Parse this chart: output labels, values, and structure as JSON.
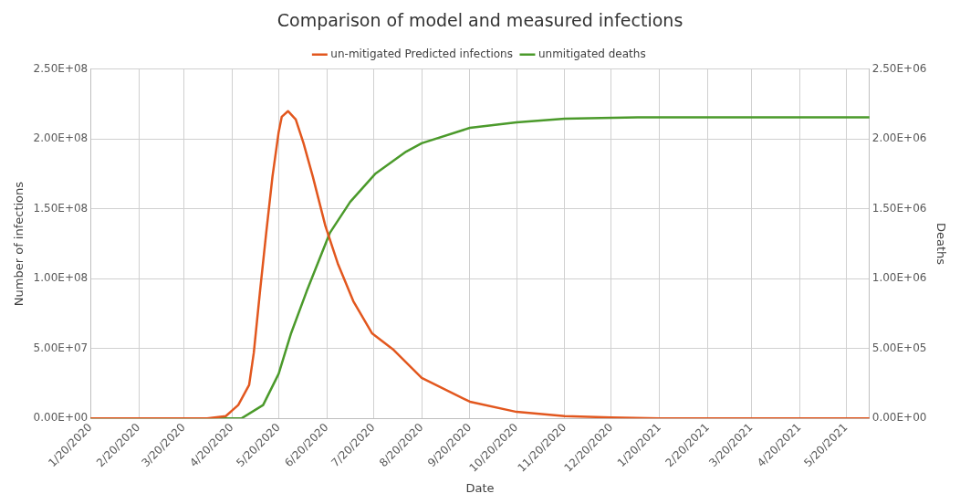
{
  "chart_data": {
    "type": "line",
    "title": "Comparison of model and measured infections",
    "xlabel": "Date",
    "ylabel": "Number of infections",
    "y2label": "Deaths",
    "series": [
      {
        "name": "un-mitigated Predicted infections",
        "color": "#e2571e",
        "x": [
          "2020-01-20",
          "2020-04-04",
          "2020-04-16",
          "2020-04-24",
          "2020-05-01",
          "2020-05-04",
          "2020-05-08",
          "2020-05-12",
          "2020-05-16",
          "2020-05-20",
          "2020-05-22",
          "2020-05-26",
          "2020-05-31",
          "2020-06-05",
          "2020-06-11",
          "2020-06-19",
          "2020-06-27",
          "2020-07-07",
          "2020-07-19",
          "2020-08-02",
          "2020-08-20",
          "2020-09-20",
          "2020-10-20",
          "2020-11-20",
          "2020-12-20",
          "2021-01-20",
          "2021-06-04"
        ],
        "values": [
          0,
          0,
          1700000,
          9600000,
          24000000,
          47000000,
          91000000,
          133000000,
          173000000,
          205000000,
          216000000,
          220000000,
          214000000,
          197000000,
          173000000,
          138000000,
          111000000,
          84000000,
          61000000,
          49000000,
          29000000,
          12000000,
          4700000,
          1700000,
          700000,
          0,
          0
        ]
      },
      {
        "name": "unmitigated deaths",
        "color": "#4b9a2b",
        "axis": "y2",
        "x": [
          "2020-01-20",
          "2020-04-26",
          "2020-05-10",
          "2020-05-20",
          "2020-05-28",
          "2020-06-07",
          "2020-06-22",
          "2020-07-05",
          "2020-07-21",
          "2020-08-10",
          "2020-08-20",
          "2020-09-20",
          "2020-10-20",
          "2020-11-20",
          "2021-01-06",
          "2021-06-04"
        ],
        "values": [
          0,
          0,
          96000,
          320000,
          610000,
          910000,
          1330000,
          1550000,
          1750000,
          1910000,
          1970000,
          2080000,
          2120000,
          2145000,
          2155000,
          2155000
        ]
      }
    ],
    "xlim": [
      "2020-01-20",
      "2021-06-04"
    ],
    "xticks": [
      {
        "value": "2020-01-20",
        "label": "1/20/2020"
      },
      {
        "value": "2020-02-20",
        "label": "2/20/2020"
      },
      {
        "value": "2020-03-20",
        "label": "3/20/2020"
      },
      {
        "value": "2020-04-20",
        "label": "4/20/2020"
      },
      {
        "value": "2020-05-20",
        "label": "5/20/2020"
      },
      {
        "value": "2020-06-20",
        "label": "6/20/2020"
      },
      {
        "value": "2020-07-20",
        "label": "7/20/2020"
      },
      {
        "value": "2020-08-20",
        "label": "8/20/2020"
      },
      {
        "value": "2020-09-20",
        "label": "9/20/2020"
      },
      {
        "value": "2020-10-20",
        "label": "10/20/2020"
      },
      {
        "value": "2020-11-20",
        "label": "11/20/2020"
      },
      {
        "value": "2020-12-20",
        "label": "12/20/2020"
      },
      {
        "value": "2021-01-20",
        "label": "1/20/2021"
      },
      {
        "value": "2021-02-20",
        "label": "2/20/2021"
      },
      {
        "value": "2021-03-20",
        "label": "3/20/2021"
      },
      {
        "value": "2021-04-20",
        "label": "4/20/2021"
      },
      {
        "value": "2021-05-20",
        "label": "5/20/2021"
      }
    ],
    "ylim": [
      0,
      250000000
    ],
    "yticks": [
      {
        "value": 0,
        "label": "0.00E+00"
      },
      {
        "value": 50000000,
        "label": "5.00E+07"
      },
      {
        "value": 100000000,
        "label": "1.00E+08"
      },
      {
        "value": 150000000,
        "label": "1.50E+08"
      },
      {
        "value": 200000000,
        "label": "2.00E+08"
      },
      {
        "value": 250000000,
        "label": "2.50E+08"
      }
    ],
    "y2lim": [
      0,
      2500000
    ],
    "y2ticks": [
      {
        "value": 0,
        "label": "0.00E+00"
      },
      {
        "value": 500000,
        "label": "5.00E+05"
      },
      {
        "value": 1000000,
        "label": "1.00E+06"
      },
      {
        "value": 1500000,
        "label": "1.50E+06"
      },
      {
        "value": 2000000,
        "label": "2.00E+06"
      },
      {
        "value": 2500000,
        "label": "2.50E+06"
      }
    ],
    "grid": true,
    "legend": "top"
  }
}
